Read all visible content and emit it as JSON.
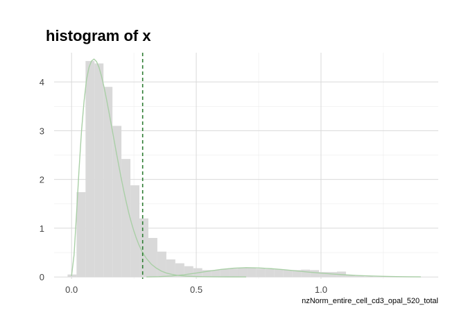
{
  "chart_data": {
    "type": "bar",
    "title": "histogram of x",
    "xlabel": "nzNorm_entire_cell_cd3_opal_520_total",
    "ylabel": "",
    "xlim": [
      -0.07,
      1.47
    ],
    "ylim": [
      -0.04,
      4.6
    ],
    "x_ticks": [
      0.0,
      0.5,
      1.0
    ],
    "x_tick_labels": [
      "0.0",
      "0.5",
      "1.0"
    ],
    "x_minor_ticks": [
      0.25,
      0.75,
      1.25
    ],
    "y_ticks": [
      0,
      1,
      2,
      3,
      4
    ],
    "y_tick_labels": [
      "0",
      "1",
      "2",
      "3",
      "4"
    ],
    "y_minor_ticks": [
      0.5,
      1.5,
      2.5,
      3.5
    ],
    "grid": true,
    "legend": "none",
    "bin_width": 0.036,
    "bins": {
      "left_edges": [
        -0.016,
        0.02,
        0.056,
        0.092,
        0.128,
        0.164,
        0.2,
        0.236,
        0.272,
        0.308,
        0.344,
        0.38,
        0.416,
        0.452,
        0.488,
        0.524,
        0.56,
        0.596,
        0.632,
        0.668,
        0.704,
        0.74,
        0.776,
        0.812,
        0.848,
        0.884,
        0.92,
        0.956,
        0.992,
        1.028,
        1.064,
        1.1,
        1.136,
        1.172
      ],
      "heights": [
        0.05,
        1.74,
        4.43,
        4.38,
        3.9,
        3.1,
        2.42,
        1.88,
        1.2,
        0.8,
        0.52,
        0.36,
        0.28,
        0.22,
        0.18,
        0.14,
        0.14,
        0.16,
        0.17,
        0.18,
        0.18,
        0.17,
        0.16,
        0.15,
        0.14,
        0.14,
        0.15,
        0.14,
        0.1,
        0.1,
        0.11,
        0.04,
        0.02,
        0.01
      ]
    },
    "density_curves": [
      {
        "x": [
          0.0,
          0.01,
          0.02,
          0.03,
          0.04,
          0.05,
          0.06,
          0.07,
          0.08,
          0.09,
          0.1,
          0.11,
          0.12,
          0.13,
          0.14,
          0.15,
          0.16,
          0.17,
          0.18,
          0.19,
          0.2,
          0.21,
          0.22,
          0.23,
          0.24,
          0.25,
          0.26,
          0.27,
          0.28,
          0.29,
          0.3,
          0.32,
          0.34,
          0.36,
          0.38,
          0.4,
          0.42,
          0.44,
          0.46,
          0.48,
          0.5,
          0.53,
          0.56,
          0.6,
          0.65,
          0.7
        ],
        "y": [
          0.02,
          0.45,
          1.3,
          2.2,
          3.0,
          3.6,
          4.05,
          4.3,
          4.43,
          4.47,
          4.42,
          4.3,
          4.12,
          3.9,
          3.65,
          3.38,
          3.1,
          2.82,
          2.54,
          2.27,
          2.0,
          1.75,
          1.52,
          1.3,
          1.11,
          0.94,
          0.79,
          0.66,
          0.55,
          0.46,
          0.38,
          0.26,
          0.18,
          0.12,
          0.08,
          0.055,
          0.037,
          0.025,
          0.017,
          0.012,
          0.008,
          0.005,
          0.003,
          0.002,
          0.001,
          0.0
        ]
      },
      {
        "x": [
          0.3,
          0.35,
          0.4,
          0.45,
          0.5,
          0.55,
          0.6,
          0.65,
          0.7,
          0.75,
          0.8,
          0.85,
          0.9,
          0.95,
          1.0,
          1.05,
          1.1,
          1.15,
          1.2,
          1.25,
          1.3,
          1.35,
          1.4
        ],
        "y": [
          0.0,
          0.005,
          0.02,
          0.045,
          0.08,
          0.12,
          0.155,
          0.18,
          0.19,
          0.185,
          0.17,
          0.15,
          0.125,
          0.1,
          0.078,
          0.058,
          0.042,
          0.029,
          0.019,
          0.012,
          0.007,
          0.004,
          0.002
        ]
      }
    ],
    "vline": {
      "x": 0.285
    },
    "colors": {
      "bar": "#d9d9d9",
      "curve": "#a9cfa6",
      "vline": "#2e7d32",
      "grid_major": "#d9d9d9",
      "grid_minor": "#ececec"
    }
  }
}
